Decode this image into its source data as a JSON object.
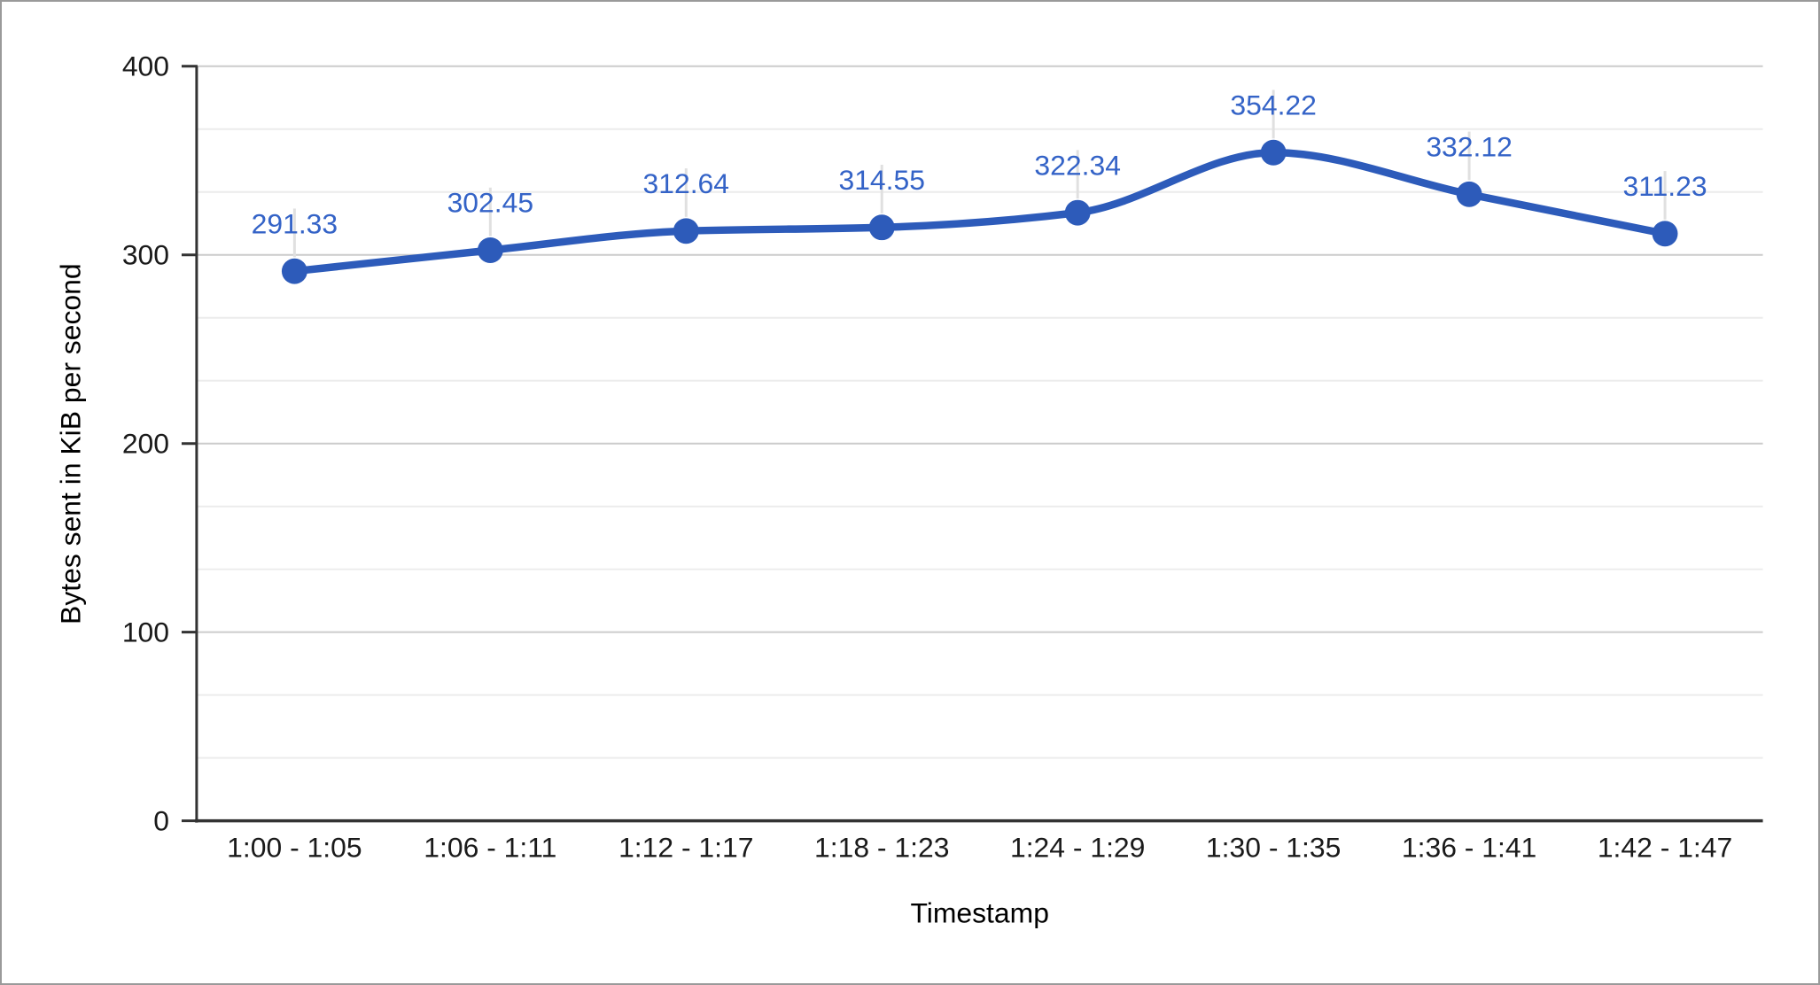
{
  "window": {
    "background": "#ffffff",
    "border_color": "#9a9a9a"
  },
  "chart_data": {
    "type": "line",
    "title": "",
    "xlabel": "Timestamp",
    "ylabel": "Bytes sent in KiB per second",
    "categories": [
      "1:00 - 1:05",
      "1:06 - 1:11",
      "1:12 - 1:17",
      "1:18 - 1:23",
      "1:24 - 1:29",
      "1:30 - 1:35",
      "1:36 - 1:41",
      "1:42 - 1:47"
    ],
    "series": [
      {
        "values": [
          291.33,
          302.45,
          312.64,
          314.55,
          322.34,
          354.22,
          332.12,
          311.23
        ],
        "point_labels": [
          "291.33",
          "302.45",
          "312.64",
          "314.55",
          "322.34",
          "354.22",
          "332.12",
          "311.23"
        ],
        "color": "#2d5bba",
        "smooth": true,
        "marker": "circle"
      }
    ],
    "ylim": [
      0,
      400
    ],
    "y_ticks": [
      {
        "value": 0,
        "label": "0"
      },
      {
        "value": 100,
        "label": "100"
      },
      {
        "value": 200,
        "label": "200"
      },
      {
        "value": 300,
        "label": "300"
      },
      {
        "value": 400,
        "label": "400"
      }
    ],
    "minor_gridline_divisions": 3,
    "grid": true,
    "legend_position": "none",
    "colors": {
      "annotation_text": "#3463c7",
      "major_gridline": "#cccccc",
      "minor_gridline": "#ececec",
      "axis_line": "#333333",
      "tick_text": "#1a1a1a",
      "axis_title_text": "#000000",
      "annotation_stem": "#e0e0e0"
    }
  }
}
